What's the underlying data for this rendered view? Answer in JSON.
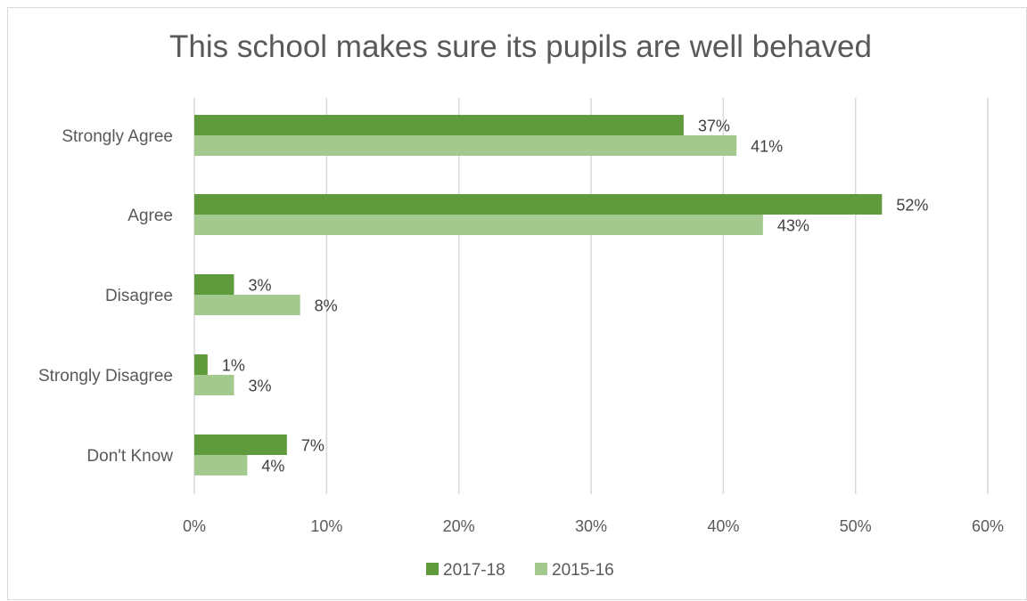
{
  "chart_data": {
    "type": "bar",
    "orientation": "horizontal",
    "title": "This school makes sure its pupils are well behaved",
    "categories": [
      "Strongly Agree",
      "Agree",
      "Disagree",
      "Strongly Disagree",
      "Don't Know"
    ],
    "series": [
      {
        "name": "2017-18",
        "color": "#5f9a3c",
        "values": [
          37,
          52,
          3,
          1,
          7
        ],
        "labels": [
          "37%",
          "52%",
          "3%",
          "1%",
          "7%"
        ]
      },
      {
        "name": "2015-16",
        "color": "#a3c98e",
        "values": [
          41,
          43,
          8,
          3,
          4
        ],
        "labels": [
          "41%",
          "43%",
          "8%",
          "3%",
          "4%"
        ]
      }
    ],
    "xlim": [
      0,
      60
    ],
    "x_ticks": [
      0,
      10,
      20,
      30,
      40,
      50,
      60
    ],
    "x_tick_labels": [
      "0%",
      "10%",
      "20%",
      "30%",
      "40%",
      "50%",
      "60%"
    ],
    "grid": true,
    "legend_position": "bottom",
    "gridline_color": "#d9d9d9"
  }
}
